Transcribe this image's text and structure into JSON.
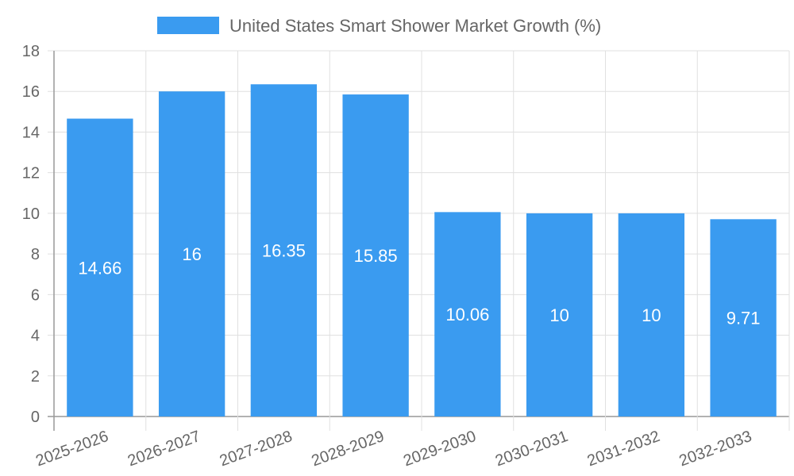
{
  "chart_data": {
    "type": "bar",
    "categories": [
      "2025-2026",
      "2026-2027",
      "2027-2028",
      "2028-2029",
      "2029-2030",
      "2030-2031",
      "2031-2032",
      "2032-2033"
    ],
    "series": [
      {
        "name": "United States Smart Shower Market Growth (%)",
        "values": [
          14.66,
          16,
          16.35,
          15.85,
          10.06,
          10,
          10,
          9.71
        ],
        "color": "#3a9bf0"
      }
    ],
    "data_labels": [
      "14.66",
      "16",
      "16.35",
      "15.85",
      "10.06",
      "10",
      "10",
      "9.71"
    ],
    "ylim": [
      0,
      18
    ],
    "yticks": [
      "0",
      "2",
      "4",
      "6",
      "8",
      "10",
      "12",
      "14",
      "16",
      "18"
    ],
    "grid": true,
    "legend_position": "top-center"
  }
}
